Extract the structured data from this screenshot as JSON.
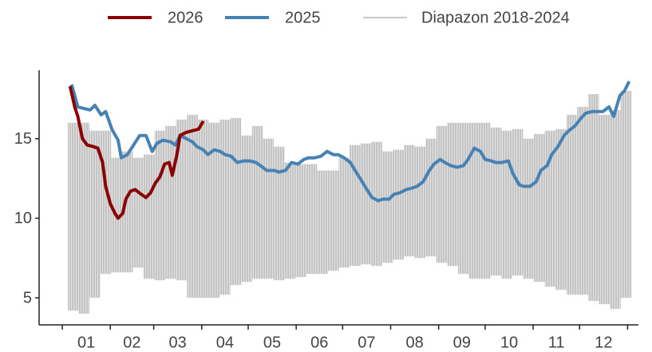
{
  "chart_data": {
    "type": "line",
    "months": [
      "01",
      "02",
      "03",
      "04",
      "05",
      "06",
      "07",
      "08",
      "09",
      "10",
      "11",
      "12"
    ],
    "xlim": [
      -15,
      372
    ],
    "xticks": [
      0,
      31,
      59,
      90,
      120,
      151,
      181,
      212,
      243,
      273,
      304,
      334,
      365
    ],
    "ylim": [
      3.3,
      19.3
    ],
    "yticks": [
      5,
      10,
      15
    ],
    "grid": false,
    "legend": "top",
    "series": [
      {
        "name": "2026",
        "color": "#8b0000",
        "x": [
          5,
          8,
          10,
          13,
          16,
          20,
          23,
          26,
          28,
          31,
          34,
          36,
          39,
          41,
          44,
          47,
          51,
          54,
          57,
          60,
          63,
          66,
          69,
          71,
          74,
          76,
          80,
          84,
          88,
          91
        ],
        "values": [
          18.3,
          17.0,
          16.4,
          15.0,
          14.6,
          14.5,
          14.4,
          13.5,
          12.0,
          10.9,
          10.3,
          10.0,
          10.3,
          11.2,
          11.7,
          11.8,
          11.5,
          11.3,
          11.6,
          12.2,
          12.6,
          13.4,
          13.5,
          12.7,
          14.0,
          15.2,
          15.4,
          15.5,
          15.6,
          16.1
        ]
      },
      {
        "name": "2025",
        "color": "#4682b4",
        "x": [
          6,
          10,
          14,
          18,
          21,
          25,
          28,
          32,
          36,
          38,
          42,
          46,
          50,
          54,
          58,
          61,
          65,
          70,
          73,
          76,
          80,
          84,
          87,
          91,
          94,
          98,
          102,
          105,
          109,
          113,
          117,
          121,
          125,
          128,
          132,
          137,
          140,
          144,
          148,
          152,
          156,
          159,
          163,
          167,
          171,
          175,
          178,
          182,
          186,
          189,
          193,
          196,
          200,
          204,
          207,
          211,
          214,
          218,
          222,
          226,
          229,
          233,
          237,
          240,
          244,
          247,
          251,
          255,
          259,
          262,
          266,
          270,
          273,
          277,
          280,
          284,
          288,
          291,
          295,
          298,
          302,
          306,
          309,
          313,
          316,
          320,
          324,
          327,
          331,
          335,
          338,
          342,
          346,
          349,
          353,
          356,
          360,
          363,
          366
        ],
        "values": [
          18.4,
          17.0,
          16.9,
          16.8,
          17.1,
          16.5,
          16.7,
          15.6,
          14.9,
          13.8,
          14.0,
          14.6,
          15.2,
          15.2,
          14.2,
          14.7,
          14.9,
          14.8,
          14.6,
          15.2,
          15.0,
          14.8,
          14.5,
          14.3,
          14.0,
          14.3,
          14.2,
          14.0,
          13.9,
          13.5,
          13.6,
          13.6,
          13.5,
          13.3,
          13.0,
          13.0,
          12.9,
          13.0,
          13.5,
          13.4,
          13.7,
          13.8,
          13.8,
          13.9,
          14.2,
          14.0,
          14.0,
          13.8,
          13.5,
          13.0,
          12.4,
          11.9,
          11.3,
          11.1,
          11.2,
          11.2,
          11.5,
          11.6,
          11.8,
          11.9,
          12.0,
          12.3,
          13.0,
          13.4,
          13.7,
          13.5,
          13.3,
          13.2,
          13.3,
          13.7,
          14.4,
          14.2,
          13.7,
          13.6,
          13.5,
          13.5,
          13.6,
          12.8,
          12.1,
          12.0,
          12.0,
          12.3,
          13.0,
          13.3,
          14.0,
          14.5,
          15.2,
          15.5,
          15.8,
          16.3,
          16.6,
          16.7,
          16.7,
          16.7,
          17.0,
          16.4,
          17.7,
          18.0,
          18.6
        ]
      },
      {
        "name": "Diapazon 2018-2024",
        "color": "#c8c8c8",
        "x": [
          4,
          7,
          14,
          21,
          28,
          35,
          42,
          49,
          56,
          63,
          70,
          77,
          84,
          91,
          98,
          105,
          112,
          119,
          126,
          133,
          140,
          147,
          154,
          161,
          168,
          175,
          182,
          189,
          196,
          203,
          210,
          217,
          224,
          231,
          238,
          245,
          252,
          259,
          266,
          273,
          280,
          287,
          294,
          301,
          308,
          315,
          322,
          329,
          336,
          343,
          350,
          357,
          364
        ],
        "high": [
          11.5,
          16,
          16,
          15.5,
          15.5,
          13.8,
          14.2,
          13.8,
          14.0,
          15.5,
          15.8,
          16.2,
          16.5,
          16.2,
          16.0,
          16.2,
          16.3,
          15.2,
          15.8,
          15.0,
          14.5,
          13.5,
          13.4,
          13.4,
          13.0,
          13.0,
          13.8,
          14.6,
          14.7,
          14.8,
          14.2,
          14.3,
          14.6,
          14.5,
          15.0,
          15.8,
          16.0,
          16.0,
          16.0,
          16.0,
          15.7,
          15.5,
          15.6,
          15.0,
          15.3,
          15.5,
          15.6,
          16.5,
          17.0,
          17.8,
          16.5,
          16.8,
          18.0
        ],
        "low": [
          4.7,
          4.2,
          4.0,
          5.0,
          6.5,
          6.6,
          6.6,
          6.9,
          6.2,
          6.1,
          6.2,
          6.1,
          5.0,
          5.0,
          5.0,
          5.2,
          5.8,
          6.0,
          6.2,
          6.2,
          6.1,
          6.2,
          6.3,
          6.5,
          6.5,
          6.7,
          6.9,
          7.0,
          7.1,
          7.0,
          7.2,
          7.4,
          7.6,
          7.5,
          7.6,
          7.2,
          7.0,
          6.5,
          6.2,
          6.2,
          6.4,
          6.2,
          6.4,
          6.2,
          6.0,
          5.7,
          5.5,
          5.2,
          5.2,
          4.8,
          4.6,
          4.3,
          5.0
        ]
      }
    ]
  }
}
